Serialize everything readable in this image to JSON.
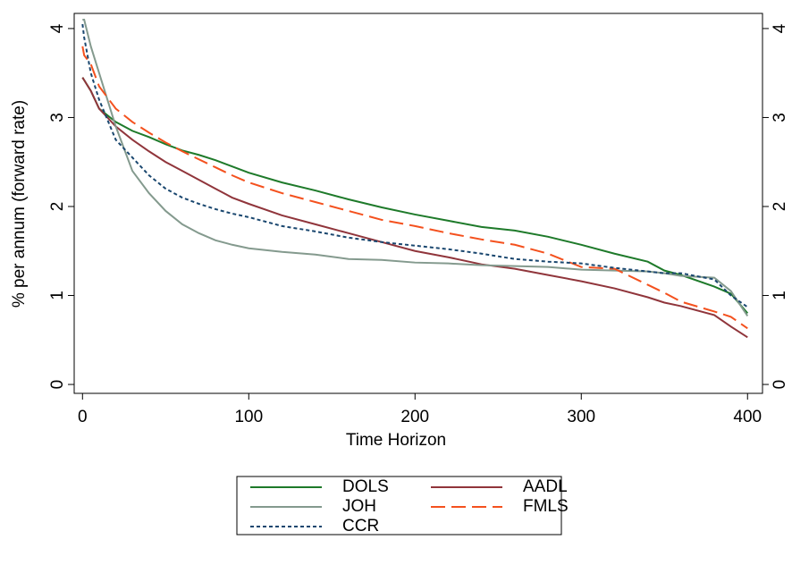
{
  "chart_data": {
    "type": "line",
    "xlabel": "Time Horizon",
    "ylabel": "% per annum (forward rate)",
    "x": [
      0,
      1,
      5,
      10,
      20,
      30,
      40,
      50,
      60,
      70,
      80,
      90,
      100,
      120,
      140,
      160,
      180,
      200,
      220,
      240,
      260,
      280,
      300,
      320,
      340,
      350,
      360,
      380,
      390,
      400
    ],
    "series": [
      {
        "name": "DOLS",
        "color": "#1e7a2a",
        "style": "solid",
        "values": [
          3.45,
          3.42,
          3.3,
          3.1,
          2.95,
          2.85,
          2.78,
          2.7,
          2.63,
          2.58,
          2.52,
          2.45,
          2.38,
          2.27,
          2.18,
          2.08,
          1.99,
          1.91,
          1.84,
          1.77,
          1.73,
          1.66,
          1.57,
          1.47,
          1.38,
          1.28,
          1.23,
          1.1,
          1.02,
          0.8
        ]
      },
      {
        "name": "AADL",
        "color": "#90353b",
        "style": "solid",
        "values": [
          3.45,
          3.42,
          3.3,
          3.1,
          2.9,
          2.75,
          2.62,
          2.5,
          2.4,
          2.3,
          2.2,
          2.1,
          2.03,
          1.9,
          1.8,
          1.7,
          1.6,
          1.5,
          1.43,
          1.35,
          1.3,
          1.23,
          1.16,
          1.08,
          0.98,
          0.92,
          0.88,
          0.78,
          0.65,
          0.53
        ]
      },
      {
        "name": "JOH",
        "color": "#849a8e",
        "style": "solid",
        "values": [
          4.1,
          4.1,
          3.8,
          3.5,
          2.9,
          2.4,
          2.15,
          1.95,
          1.8,
          1.7,
          1.62,
          1.57,
          1.53,
          1.49,
          1.46,
          1.41,
          1.4,
          1.37,
          1.36,
          1.34,
          1.33,
          1.32,
          1.29,
          1.28,
          1.27,
          1.25,
          1.22,
          1.2,
          1.05,
          0.77
        ]
      },
      {
        "name": "FMLS",
        "color": "#f4511e",
        "style": "dash",
        "values": [
          3.8,
          3.7,
          3.6,
          3.35,
          3.1,
          2.95,
          2.83,
          2.72,
          2.62,
          2.53,
          2.44,
          2.35,
          2.27,
          2.15,
          2.05,
          1.95,
          1.85,
          1.78,
          1.7,
          1.63,
          1.57,
          1.47,
          1.32,
          1.3,
          1.12,
          1.03,
          0.93,
          0.82,
          0.76,
          0.63
        ]
      },
      {
        "name": "CCR",
        "color": "#1a476f",
        "style": "dot",
        "values": [
          4.05,
          3.9,
          3.5,
          3.2,
          2.75,
          2.55,
          2.35,
          2.2,
          2.1,
          2.03,
          1.97,
          1.92,
          1.88,
          1.78,
          1.72,
          1.65,
          1.6,
          1.56,
          1.52,
          1.47,
          1.41,
          1.38,
          1.36,
          1.31,
          1.27,
          1.25,
          1.25,
          1.18,
          1.0,
          0.87
        ]
      }
    ],
    "xlim": [
      -5,
      409
    ],
    "xticks": [
      0,
      100,
      200,
      300,
      400
    ],
    "ylim": [
      -0.1,
      4.17
    ],
    "yticks": [
      0,
      1,
      2,
      3,
      4
    ],
    "y2lim": [
      -0.1,
      4.17
    ],
    "y2ticks": [
      0,
      1,
      2,
      3,
      4
    ],
    "legend": "bottom",
    "legend_columns": 2
  }
}
